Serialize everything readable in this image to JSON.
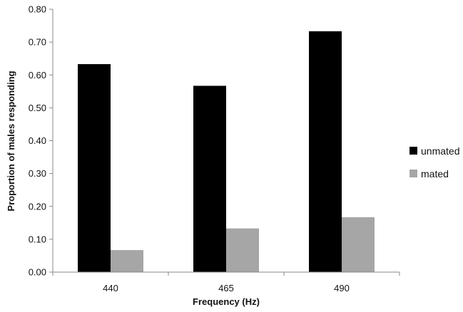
{
  "chart_data": {
    "type": "bar",
    "categories": [
      "440",
      "465",
      "490"
    ],
    "series": [
      {
        "name": "unmated",
        "values": [
          0.633,
          0.567,
          0.733
        ],
        "color": "#000000"
      },
      {
        "name": "mated",
        "values": [
          0.067,
          0.133,
          0.167
        ],
        "color": "#a6a6a6"
      }
    ],
    "xlabel": "Frequency (Hz)",
    "ylabel": "Proportion of males responding",
    "ylim": [
      0,
      0.8
    ],
    "yticks": [
      "0.00",
      "0.10",
      "0.20",
      "0.30",
      "0.40",
      "0.50",
      "0.60",
      "0.70",
      "0.80"
    ],
    "grid": false,
    "legend_position": "right"
  }
}
